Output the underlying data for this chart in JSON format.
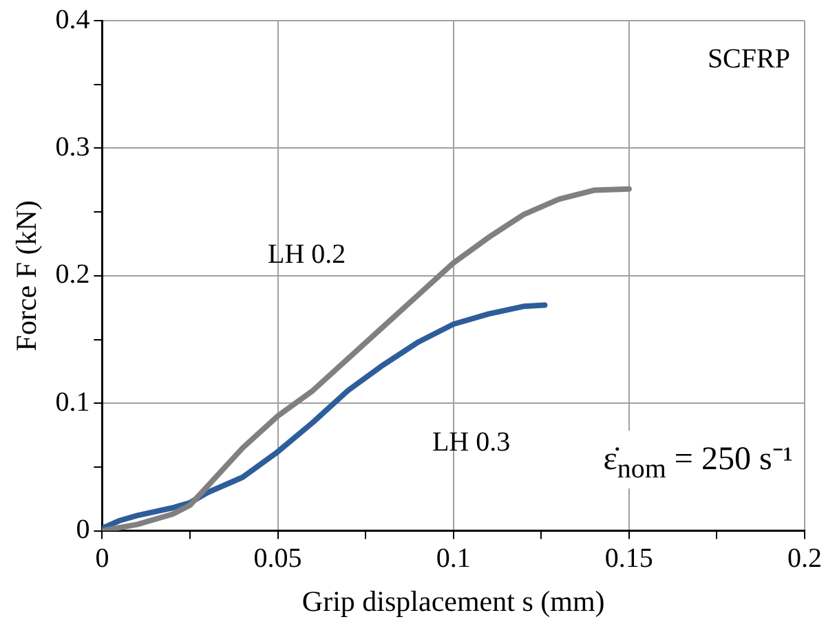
{
  "chart_data": {
    "type": "line",
    "xlabel": "Grip displacement s (mm)",
    "ylabel": "Force F (kN)",
    "series": [
      {
        "name": "LH 0.2",
        "color": "#808080",
        "x": [
          0,
          0.01,
          0.02,
          0.025,
          0.03,
          0.04,
          0.05,
          0.06,
          0.07,
          0.08,
          0.09,
          0.1,
          0.11,
          0.12,
          0.13,
          0.14,
          0.15
        ],
        "values": [
          0,
          0.005,
          0.013,
          0.02,
          0.035,
          0.065,
          0.09,
          0.11,
          0.135,
          0.16,
          0.185,
          0.21,
          0.23,
          0.248,
          0.26,
          0.267,
          0.268
        ]
      },
      {
        "name": "LH 0.3",
        "color": "#2e5e9a",
        "x": [
          0,
          0.005,
          0.01,
          0.02,
          0.025,
          0.03,
          0.04,
          0.05,
          0.06,
          0.07,
          0.08,
          0.09,
          0.1,
          0.11,
          0.12,
          0.126
        ],
        "values": [
          0.002,
          0.008,
          0.012,
          0.018,
          0.022,
          0.03,
          0.042,
          0.062,
          0.085,
          0.11,
          0.13,
          0.148,
          0.162,
          0.17,
          0.176,
          0.177
        ]
      }
    ],
    "xlim": [
      0,
      0.2
    ],
    "xticks": [
      0,
      {
        "value": 0.025,
        "label": null
      },
      0.05,
      {
        "value": 0.075,
        "label": null
      },
      0.1,
      {
        "value": 0.125,
        "label": null
      },
      0.15,
      {
        "value": 0.175,
        "label": null
      },
      0.2
    ],
    "ylim": [
      0,
      0.4
    ],
    "yticks": [
      0,
      {
        "value": 0.05,
        "label": null
      },
      0.1,
      {
        "value": 0.15,
        "label": null
      },
      0.2,
      {
        "value": 0.25,
        "label": null
      },
      0.3,
      {
        "value": 0.35,
        "label": null
      },
      0.4
    ],
    "grid": true,
    "legend": false,
    "marker": "none",
    "line_style": "solid",
    "annotations": [
      "SCFRP",
      "ε̇$_{nom}$ = 250 s⁻¹"
    ]
  }
}
